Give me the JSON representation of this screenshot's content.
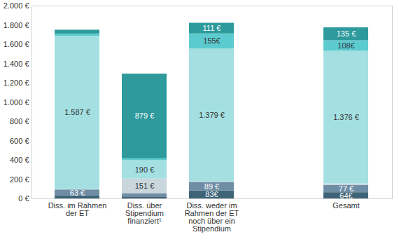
{
  "chart_data": {
    "type": "bar",
    "stacked": true,
    "data_labels": true,
    "categories": [
      "Diss. im Rahmen der ET",
      "Diss. über Stipendium finanziert¹",
      "Diss. weder im Rahmen der ET noch über ein Stipendium",
      null,
      "Gesamt"
    ],
    "series": [
      {
        "color": "#3f6377",
        "values": [
          30,
          20,
          83,
          null,
          64
        ],
        "value_labels": [
          null,
          null,
          "83€",
          null,
          "64€"
        ]
      },
      {
        "color": "#6f8ea6",
        "values": [
          63,
          35,
          89,
          null,
          77
        ],
        "value_labels": [
          "63 €",
          null,
          "89 €",
          null,
          "77 €"
        ]
      },
      {
        "color": "#c9d6dc",
        "values": [
          5,
          151,
          5,
          null,
          15
        ],
        "value_labels": [
          null,
          "151 €",
          null,
          null,
          null
        ]
      },
      {
        "color": "#a4e0e2",
        "values": [
          1587,
          190,
          1379,
          null,
          1376
        ],
        "value_labels": [
          "1.587 €",
          "190 €",
          "1.379 €",
          null,
          "1.376 €"
        ]
      },
      {
        "color": "#5ccbd0",
        "values": [
          25,
          20,
          155,
          null,
          108
        ],
        "value_labels": [
          null,
          null,
          "155€",
          null,
          "108€"
        ]
      },
      {
        "color": "#2e9a9c",
        "values": [
          40,
          879,
          111,
          null,
          135
        ],
        "value_labels": [
          null,
          "879 €",
          "111 €",
          null,
          "135 €"
        ]
      }
    ],
    "ylim": [
      0,
      2000
    ],
    "yticks": [
      {
        "value": 0,
        "label": "0 €"
      },
      {
        "value": 200,
        "label": "200 €"
      },
      {
        "value": 400,
        "label": "400 €"
      },
      {
        "value": 600,
        "label": "600 €"
      },
      {
        "value": 800,
        "label": "800 €"
      },
      {
        "value": 1000,
        "label": "1.000 €"
      },
      {
        "value": 1200,
        "label": "1.200 €"
      },
      {
        "value": 1400,
        "label": "1.400 €"
      },
      {
        "value": 1600,
        "label": "1.600 €"
      },
      {
        "value": 1800,
        "label": "1.800 €"
      },
      {
        "value": 2000,
        "label": "2.000 €"
      }
    ]
  }
}
